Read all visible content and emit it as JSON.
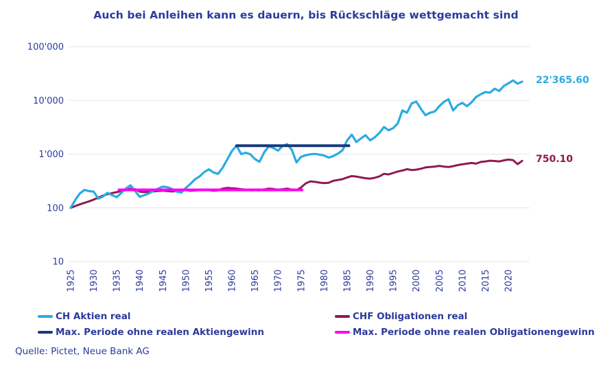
{
  "colors": {
    "text": "#2b3a9c",
    "grid": "#e5e5ee"
  },
  "source": {
    "label": "Quelle: Pictet, Neue Bank AG"
  },
  "legend": {
    "items": [
      {
        "label": "CH Aktien real",
        "color": "#29abe2"
      },
      {
        "label": "CHF Obligationen real",
        "color": "#8e1a4f"
      },
      {
        "label": "Max. Periode ohne realen Aktiengewinn",
        "color": "#16397f"
      },
      {
        "label": "Max. Periode ohne realen Obligationengewinn",
        "color": "#ff00f2"
      }
    ]
  },
  "chart_data": {
    "type": "line",
    "title": "Auch bei Anleihen kann es dauern, bis Rückschläge wettgemacht sind",
    "y_axis": {
      "scale": "log",
      "range": [
        10,
        100000
      ],
      "ticks": [
        100000,
        10000,
        1000,
        100,
        10
      ],
      "tick_labels": [
        "100'000",
        "10'000",
        "1'000",
        "100",
        "10"
      ],
      "grid": true
    },
    "x_axis": {
      "range": [
        1925,
        2024
      ],
      "ticks": [
        1925,
        1930,
        1935,
        1940,
        1945,
        1950,
        1955,
        1960,
        1965,
        1970,
        1975,
        1980,
        1985,
        1990,
        1995,
        2000,
        2005,
        2010,
        2015,
        2020
      ]
    },
    "series": [
      {
        "name": "CH Aktien real",
        "color": "#29abe2",
        "width": 3.2,
        "x_start": 1925,
        "x_step": 1,
        "values": [
          100,
          140,
          185,
          215,
          205,
          200,
          148,
          162,
          190,
          172,
          158,
          190,
          230,
          262,
          205,
          160,
          172,
          185,
          208,
          228,
          248,
          242,
          225,
          200,
          192,
          235,
          280,
          340,
          385,
          465,
          520,
          455,
          430,
          560,
          800,
          1150,
          1430,
          1000,
          1060,
          990,
          810,
          720,
          1080,
          1400,
          1300,
          1160,
          1420,
          1530,
          1200,
          700,
          890,
          950,
          990,
          1010,
          980,
          940,
          860,
          920,
          1020,
          1180,
          1800,
          2300,
          1680,
          1960,
          2250,
          1800,
          2050,
          2480,
          3200,
          2780,
          3050,
          3750,
          6500,
          5900,
          8800,
          9500,
          7000,
          5300,
          5900,
          6200,
          7800,
          9400,
          10500,
          6500,
          8100,
          9000,
          7800,
          9200,
          11600,
          13000,
          14300,
          13900,
          16500,
          15000,
          18500,
          20800,
          23500,
          20500,
          22365.6
        ]
      },
      {
        "name": "CHF Obligationen real",
        "color": "#8e1a4f",
        "width": 3,
        "x_start": 1925,
        "x_step": 1,
        "values": [
          100,
          108,
          116,
          124,
          132,
          142,
          155,
          168,
          180,
          188,
          196,
          205,
          216,
          228,
          222,
          200,
          196,
          199,
          203,
          206,
          209,
          205,
          202,
          205,
          210,
          216,
          208,
          210,
          215,
          218,
          214,
          208,
          212,
          228,
          235,
          232,
          228,
          222,
          218,
          212,
          214,
          212,
          220,
          228,
          224,
          218,
          222,
          228,
          218,
          212,
          240,
          285,
          310,
          305,
          295,
          288,
          292,
          318,
          330,
          342,
          368,
          390,
          382,
          368,
          356,
          350,
          362,
          385,
          430,
          418,
          445,
          475,
          495,
          525,
          505,
          515,
          535,
          565,
          575,
          585,
          605,
          585,
          575,
          595,
          625,
          645,
          665,
          685,
          665,
          715,
          730,
          755,
          745,
          730,
          765,
          790,
          775,
          650,
          750.1
        ]
      }
    ],
    "segments": [
      {
        "name": "Max. Periode ohne realen Aktiengewinn",
        "color": "#16397f",
        "width": 4,
        "x_start": 1961,
        "x_end": 1985.4,
        "value": 1430
      },
      {
        "name": "Max. Periode ohne realen Obligationengewinn",
        "color": "#ff00f2",
        "width": 4,
        "x_start": 1935.5,
        "x_end": 1975.2,
        "value": 216
      }
    ],
    "end_labels": [
      {
        "text": "22'365.60",
        "color": "#29abe2",
        "value": 22365.6
      },
      {
        "text": "750.10",
        "color": "#8e1a4f",
        "value": 750.1
      }
    ],
    "legend_position": "bottom"
  }
}
